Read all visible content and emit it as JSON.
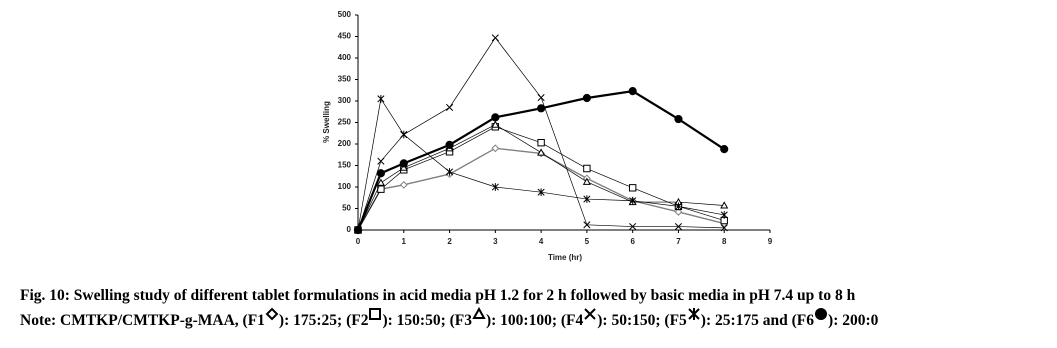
{
  "chart_data": {
    "type": "line",
    "x_label": "Time (hr)",
    "y_label": "% Swelling",
    "x": [
      0,
      0.5,
      1,
      2,
      3,
      4,
      5,
      6,
      7,
      8
    ],
    "series": [
      {
        "marker": "diamond",
        "color": "#808080",
        "values": [
          0,
          95,
          105,
          130,
          190,
          178,
          120,
          68,
          42,
          15
        ]
      },
      {
        "marker": "square",
        "color": "#000000",
        "values": [
          0,
          95,
          140,
          182,
          240,
          203,
          143,
          98,
          55,
          22
        ]
      },
      {
        "marker": "triangle",
        "color": "#000000",
        "values": [
          0,
          110,
          145,
          190,
          245,
          180,
          112,
          65,
          65,
          57
        ]
      },
      {
        "marker": "x",
        "color": "#000000",
        "values": [
          0,
          160,
          222,
          285,
          447,
          308,
          12,
          8,
          8,
          5
        ]
      },
      {
        "marker": "star",
        "color": "#000000",
        "values": [
          0,
          305,
          222,
          135,
          100,
          88,
          72,
          68,
          55,
          35
        ]
      },
      {
        "marker": "circle",
        "color": "#000000",
        "bold": true,
        "values": [
          0,
          132,
          155,
          198,
          262,
          283,
          307,
          323,
          258,
          188
        ]
      }
    ],
    "xlim": [
      0,
      9
    ],
    "xticks": [
      0,
      1,
      2,
      3,
      4,
      5,
      6,
      7,
      8,
      9
    ],
    "ylim": [
      0,
      500
    ],
    "yticks": [
      0,
      50,
      100,
      150,
      200,
      250,
      300,
      350,
      400,
      450,
      500
    ]
  },
  "caption": {
    "line1": "Fig. 10: Swelling study of different tablet formulations in acid media pH 1.2 for 2 h followed by basic media in pH 7.4 up to 8 h",
    "note_parts": [
      "Note: CMTKP/CMTKP-g-MAA, (F1",
      "): 175:25; (F2",
      "): 150:50; (F3",
      "): 100:100; (F4",
      "): 50:150; (F5",
      "): 25:175  and (F6",
      "): 200:0"
    ]
  }
}
